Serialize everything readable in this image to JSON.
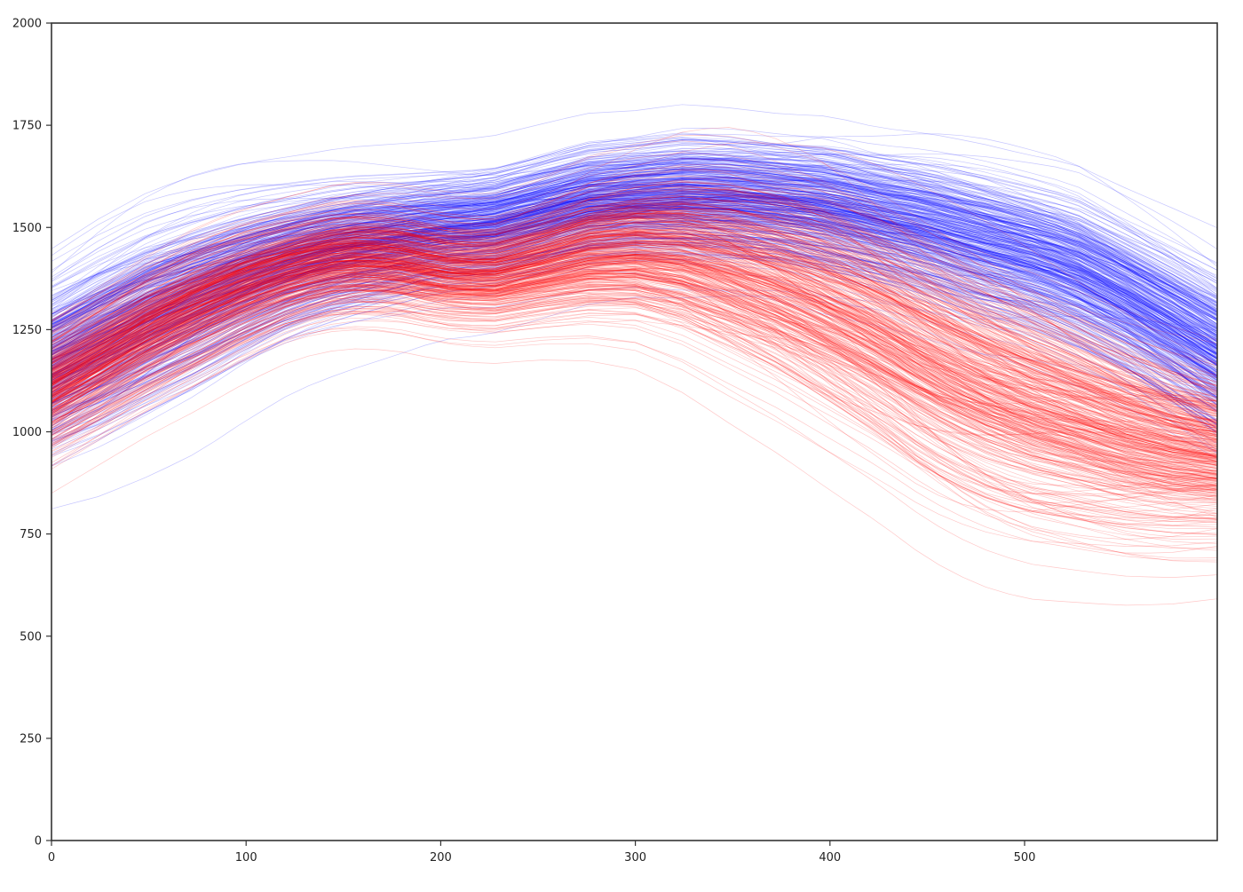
{
  "chart_data": {
    "type": "line",
    "title": "",
    "xlabel": "",
    "ylabel": "",
    "xlim": [
      0,
      599
    ],
    "ylim": [
      0,
      2000
    ],
    "x_ticks": [
      0,
      100,
      200,
      300,
      400,
      500
    ],
    "x_tick_labels": [
      "0",
      "100",
      "200",
      "300",
      "400",
      "500"
    ],
    "y_ticks": [
      0,
      250,
      500,
      750,
      1000,
      1250,
      1500,
      1750,
      2000
    ],
    "y_tick_labels": [
      "0",
      "250",
      "500",
      "750",
      "1000",
      "1250",
      "1500",
      "1750",
      "2000"
    ],
    "grid": false,
    "legend": "none",
    "x": [
      0,
      25,
      50,
      75,
      100,
      125,
      150,
      175,
      200,
      225,
      250,
      275,
      300,
      325,
      350,
      375,
      400,
      425,
      450,
      475,
      500,
      525,
      550,
      575,
      599
    ],
    "series": [
      {
        "color": "#0000ff",
        "line_count_approx": 1500,
        "center_values": [
          1160,
          1220,
          1280,
          1330,
          1380,
          1420,
          1450,
          1470,
          1490,
          1500,
          1530,
          1560,
          1570,
          1575,
          1570,
          1560,
          1545,
          1520,
          1495,
          1460,
          1430,
          1390,
          1330,
          1260,
          1190
        ],
        "spread_values": [
          110,
          115,
          115,
          110,
          100,
          90,
          85,
          80,
          75,
          75,
          75,
          75,
          75,
          80,
          80,
          80,
          85,
          85,
          90,
          95,
          95,
          100,
          100,
          105,
          110
        ]
      },
      {
        "color": "#ff0000",
        "line_count_approx": 1500,
        "center_values": [
          1110,
          1180,
          1250,
          1310,
          1360,
          1400,
          1425,
          1420,
          1395,
          1385,
          1410,
          1440,
          1450,
          1440,
          1410,
          1370,
          1320,
          1260,
          1190,
          1130,
          1080,
          1040,
          1000,
          970,
          950
        ],
        "spread_values": [
          80,
          80,
          80,
          80,
          75,
          70,
          70,
          70,
          70,
          70,
          75,
          85,
          95,
          110,
          125,
          135,
          145,
          150,
          155,
          155,
          150,
          140,
          130,
          120,
          110
        ]
      }
    ]
  }
}
